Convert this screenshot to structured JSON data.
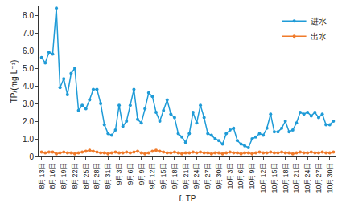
{
  "chart_data": {
    "type": "line",
    "x_label": "f. TP",
    "y_label": "TP/(mg·L⁻¹)",
    "categories": [
      "8月13日",
      null,
      null,
      "8月16日",
      null,
      null,
      "8月19日",
      null,
      null,
      "8月22日",
      null,
      null,
      "8月25日",
      null,
      null,
      "8月28日",
      null,
      null,
      "8月31日",
      null,
      null,
      "9月3日",
      null,
      null,
      "9月6日",
      null,
      null,
      "9月9日",
      null,
      null,
      "9月12日",
      null,
      null,
      "9月15日",
      null,
      null,
      "9月18日",
      null,
      null,
      "9月21日",
      null,
      null,
      "9月24日",
      null,
      null,
      "9月27日",
      null,
      null,
      "9月30日",
      null,
      null,
      "10月3日",
      null,
      null,
      "10月6日",
      null,
      null,
      "10月9日",
      null,
      null,
      "10月12日",
      null,
      null,
      "10月15日",
      null,
      null,
      "10月18日",
      null,
      null,
      "10月21日",
      null,
      null,
      "10月24日",
      null,
      null,
      "10月27日",
      null,
      null,
      "10月30日",
      null
    ],
    "series": [
      {
        "name": "进水",
        "color": "#1f9bd7",
        "marker": "circle",
        "values": [
          5.6,
          5.3,
          5.9,
          5.8,
          8.4,
          3.9,
          4.4,
          3.5,
          4.7,
          5.0,
          2.6,
          2.9,
          2.7,
          3.2,
          3.8,
          3.8,
          3.0,
          1.8,
          1.3,
          1.2,
          1.5,
          2.9,
          1.7,
          2.0,
          2.9,
          3.8,
          2.1,
          1.9,
          2.7,
          3.6,
          3.4,
          2.5,
          2.0,
          2.6,
          3.2,
          2.4,
          2.2,
          1.3,
          1.1,
          0.8,
          1.3,
          2.5,
          1.9,
          2.9,
          2.2,
          1.3,
          1.2,
          1.0,
          0.9,
          0.7,
          1.3,
          1.5,
          1.6,
          0.9,
          0.7,
          0.6,
          0.5,
          1.0,
          1.1,
          1.3,
          1.2,
          1.6,
          2.4,
          1.4,
          1.4,
          1.6,
          2.0,
          1.4,
          1.5,
          1.9,
          2.5,
          2.4,
          2.5,
          2.3,
          2.5,
          2.2,
          2.4,
          1.8,
          1.8,
          2.0
        ]
      },
      {
        "name": "出水",
        "color": "#f07b2b",
        "marker": "circle",
        "values": [
          0.25,
          0.2,
          0.25,
          0.25,
          0.15,
          0.2,
          0.25,
          0.2,
          0.2,
          0.15,
          0.2,
          0.25,
          0.3,
          0.35,
          0.3,
          0.25,
          0.2,
          0.2,
          0.15,
          0.2,
          0.25,
          0.2,
          0.2,
          0.25,
          0.2,
          0.25,
          0.3,
          0.2,
          0.15,
          0.2,
          0.3,
          0.35,
          0.3,
          0.25,
          0.2,
          0.2,
          0.25,
          0.2,
          0.15,
          0.2,
          0.2,
          0.25,
          0.2,
          0.25,
          0.2,
          0.2,
          0.15,
          0.2,
          0.2,
          0.15,
          0.2,
          0.25,
          0.2,
          0.2,
          0.15,
          0.2,
          0.2,
          0.15,
          0.2,
          0.25,
          0.2,
          0.2,
          0.25,
          0.2,
          0.2,
          0.25,
          0.2,
          0.2,
          0.15,
          0.2,
          0.25,
          0.2,
          0.2,
          0.25,
          0.2,
          0.2,
          0.25,
          0.2,
          0.2,
          0.25
        ]
      }
    ],
    "ylim": [
      0,
      8.5
    ],
    "yticks": [
      0,
      {
        "value": 1,
        "label": "1.0"
      },
      {
        "value": 2,
        "label": "2.0"
      },
      {
        "value": 3,
        "label": "3.0"
      },
      {
        "value": 4,
        "label": "4.0"
      },
      {
        "value": 5,
        "label": "5.0"
      },
      {
        "value": 6,
        "label": "6.0"
      },
      {
        "value": 7,
        "label": "7.0"
      },
      {
        "value": 8,
        "label": "8.0"
      }
    ],
    "grid": false,
    "legend": "top-right"
  }
}
